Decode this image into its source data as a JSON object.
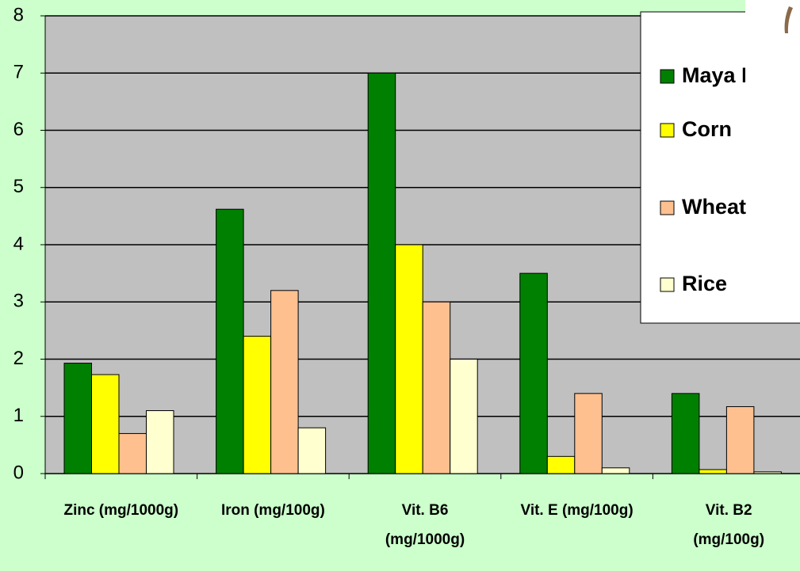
{
  "chart_data": {
    "type": "bar",
    "categories": [
      "Zinc (mg/1000g)",
      "Iron (mg/100g)",
      "Vit. B6\n(mg/1000g)",
      "Vit. E (mg/100g)",
      "Vit. B2\n(mg/100g)"
    ],
    "series": [
      {
        "name": "Maya Nut",
        "color": "#008000",
        "values": [
          1.93,
          4.62,
          7,
          3.5,
          1.4
        ]
      },
      {
        "name": "Corn",
        "color": "#ffff00",
        "values": [
          1.73,
          2.4,
          4,
          0.3,
          0.07
        ]
      },
      {
        "name": "Wheat",
        "color": "#ffc090",
        "values": [
          0.7,
          3.2,
          3,
          1.4,
          1.17
        ]
      },
      {
        "name": "Rice",
        "color": "#ffffd0",
        "values": [
          1.1,
          0.8,
          2,
          0.1,
          0.03
        ]
      }
    ],
    "ylim": [
      0,
      8
    ],
    "yticks": [
      0,
      1,
      2,
      3,
      4,
      5,
      6,
      7,
      8
    ],
    "grid": true
  }
}
